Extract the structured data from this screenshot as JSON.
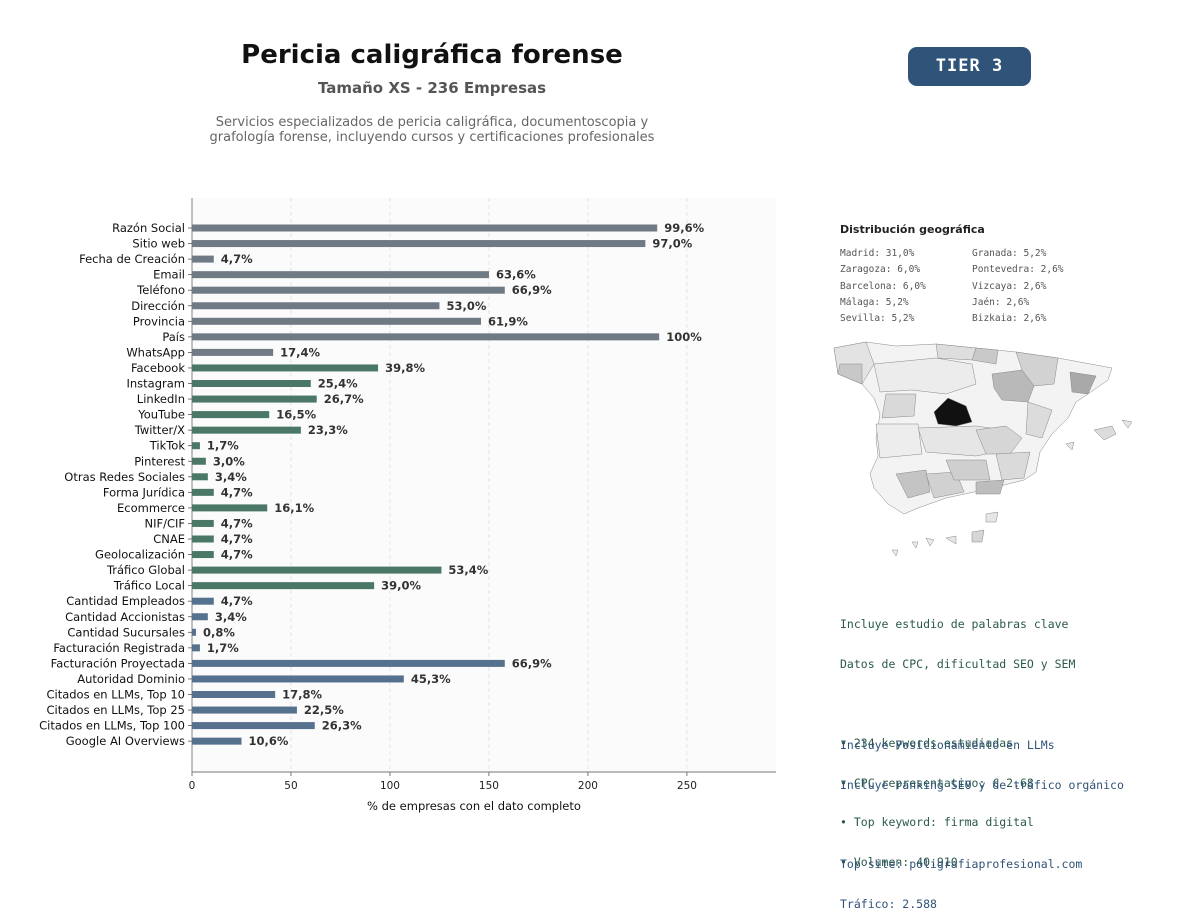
{
  "header": {
    "title": "Pericia caligráfica forense",
    "subtitle": "Tamaño XS - 236 Empresas",
    "description_line1": "Servicios especializados de pericia caligráfica, documentoscopia y",
    "description_line2": "grafología forense, incluyendo cursos y certificaciones profesionales",
    "tier": "TIER 3"
  },
  "chart_data": {
    "type": "bar",
    "orientation": "horizontal",
    "xlabel": "% de empresas con el dato completo",
    "xlim": [
      0,
      295
    ],
    "xticks": [
      0,
      50,
      100,
      150,
      200,
      250
    ],
    "grid": "vertical dashed",
    "categories": [
      "Razón Social",
      "Sitio web",
      "Fecha de Creación",
      "Email",
      "Teléfono",
      "Dirección",
      "Provincia",
      "País",
      "WhatsApp",
      "Facebook",
      "Instagram",
      "LinkedIn",
      "YouTube",
      "Twitter/X",
      "TikTok",
      "Pinterest",
      "Otras Redes Sociales",
      "Forma Jurídica",
      "Ecommerce",
      "NIF/CIF",
      "CNAE",
      "Geolocalización",
      "Tráfico Global",
      "Tráfico Local",
      "Cantidad Empleados",
      "Cantidad Accionistas",
      "Cantidad Sucursales",
      "Facturación Registrada",
      "Facturación Proyectada",
      "Autoridad Dominio",
      "Citados en LLMs, Top 10",
      "Citados en LLMs, Top 25",
      "Citados en LLMs, Top 100",
      "Google AI Overviews"
    ],
    "values": [
      235,
      229,
      11,
      150,
      158,
      125,
      146,
      236,
      41,
      94,
      60,
      63,
      39,
      55,
      4,
      7,
      8,
      11,
      38,
      11,
      11,
      11,
      126,
      92,
      11,
      8,
      2,
      4,
      158,
      107,
      42,
      53,
      62,
      25
    ],
    "labels": [
      "99,6%",
      "97,0%",
      "4,7%",
      "63,6%",
      "66,9%",
      "53,0%",
      "61,9%",
      "100%",
      "17,4%",
      "39,8%",
      "25,4%",
      "26,7%",
      "16,5%",
      "23,3%",
      "1,7%",
      "3,0%",
      "3,4%",
      "4,7%",
      "16,1%",
      "4,7%",
      "4,7%",
      "4,7%",
      "53,4%",
      "39,0%",
      "4,7%",
      "3,4%",
      "0,8%",
      "1,7%",
      "66,9%",
      "45,3%",
      "17,8%",
      "22,5%",
      "26,3%",
      "10,6%"
    ],
    "groups": [
      "basic",
      "basic",
      "basic",
      "basic",
      "basic",
      "basic",
      "basic",
      "basic",
      "basic",
      "social",
      "social",
      "social",
      "social",
      "social",
      "social",
      "social",
      "social",
      "social",
      "social",
      "social",
      "social",
      "social",
      "social",
      "social",
      "finance",
      "finance",
      "finance",
      "finance",
      "finance",
      "finance",
      "finance",
      "finance",
      "finance",
      "finance"
    ],
    "colors": {
      "basic": "#6f7a84",
      "social": "#4a7766",
      "finance": "#56718d"
    }
  },
  "geo": {
    "title": "Distribución geográfica",
    "left": [
      "Madrid: 31,0%",
      "Zaragoza: 6,0%",
      "Barcelona: 6,0%",
      "Málaga: 5,2%",
      "Sevilla: 5,2%"
    ],
    "right": [
      "Granada: 5,2%",
      "Pontevedra: 2,6%",
      "Vizcaya: 2,6%",
      "Jaén: 2,6%",
      "Bizkaia: 2,6%"
    ]
  },
  "keywords": {
    "line1": "Incluye estudio de palabras clave",
    "line2": "Datos de CPC, dificultad SEO y SEM",
    "bullet1": "• 234 keywords estudiadas",
    "bullet2": "• CPC representativo: € 2.68",
    "bullet3": "• Top keyword: firma digital",
    "bullet4": "• Volumen: 40.910"
  },
  "llm": {
    "line1": "Incluye Posicionamiento en LLMs",
    "line2": "Incluye ranking SEO y de tráfico orgánico",
    "top_site": "Top site: poligrafiaprofesional.com",
    "traffic": "Tráfico: 2.588"
  }
}
